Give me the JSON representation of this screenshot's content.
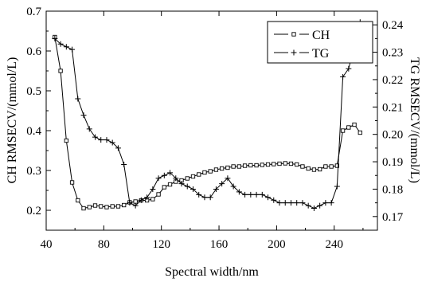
{
  "chart_data": {
    "type": "line",
    "xlabel": "Spectral width/nm",
    "ylabel_left": "CH RMSECV/(mmol/L)",
    "ylabel_right": "TG RMSECV/(mmol/L)",
    "xlim": [
      40,
      270
    ],
    "ylim_left": [
      0.15,
      0.7
    ],
    "ylim_right": [
      0.165,
      0.245
    ],
    "xticks": [
      "40",
      "80",
      "120",
      "160",
      "200",
      "240"
    ],
    "yticks_left": [
      "0.2",
      "0.3",
      "0.4",
      "0.5",
      "0.6",
      "0.7"
    ],
    "yticks_right": [
      "0.17",
      "0.18",
      "0.19",
      "0.20",
      "0.21",
      "0.22",
      "0.23",
      "0.24"
    ],
    "legend_position": "top-right",
    "grid": false,
    "series": [
      {
        "name": "CH",
        "axis": "left",
        "marker": "square",
        "x": [
          46,
          50,
          54,
          58,
          62,
          66,
          70,
          74,
          78,
          82,
          86,
          90,
          94,
          98,
          102,
          106,
          110,
          114,
          118,
          122,
          126,
          130,
          134,
          138,
          142,
          146,
          150,
          154,
          158,
          162,
          166,
          170,
          174,
          178,
          182,
          186,
          190,
          194,
          198,
          202,
          206,
          210,
          214,
          218,
          222,
          226,
          230,
          234,
          238,
          242,
          246,
          250,
          254,
          258
        ],
        "values": [
          0.635,
          0.55,
          0.375,
          0.27,
          0.225,
          0.205,
          0.208,
          0.212,
          0.21,
          0.208,
          0.21,
          0.21,
          0.213,
          0.22,
          0.222,
          0.225,
          0.225,
          0.228,
          0.24,
          0.258,
          0.265,
          0.272,
          0.275,
          0.28,
          0.285,
          0.29,
          0.295,
          0.298,
          0.302,
          0.305,
          0.307,
          0.31,
          0.31,
          0.312,
          0.313,
          0.313,
          0.314,
          0.315,
          0.316,
          0.317,
          0.318,
          0.317,
          0.315,
          0.31,
          0.305,
          0.302,
          0.303,
          0.31,
          0.31,
          0.312,
          0.4,
          0.408,
          0.415,
          0.395
        ]
      },
      {
        "name": "TG",
        "axis": "right",
        "marker": "plus",
        "x": [
          46,
          50,
          54,
          58,
          62,
          66,
          70,
          74,
          78,
          82,
          86,
          90,
          94,
          98,
          102,
          106,
          110,
          114,
          118,
          122,
          126,
          130,
          134,
          138,
          142,
          146,
          150,
          154,
          158,
          162,
          166,
          170,
          174,
          178,
          182,
          186,
          190,
          194,
          198,
          202,
          206,
          210,
          214,
          218,
          222,
          226,
          230,
          234,
          238,
          242,
          246,
          250,
          254,
          258
        ],
        "values": [
          0.235,
          0.233,
          0.232,
          0.231,
          0.213,
          0.207,
          0.202,
          0.199,
          0.198,
          0.198,
          0.197,
          0.195,
          0.189,
          0.175,
          0.174,
          0.176,
          0.177,
          0.18,
          0.184,
          0.185,
          0.186,
          0.184,
          0.182,
          0.181,
          0.18,
          0.178,
          0.177,
          0.177,
          0.18,
          0.182,
          0.184,
          0.181,
          0.179,
          0.178,
          0.178,
          0.178,
          0.178,
          0.177,
          0.176,
          0.175,
          0.175,
          0.175,
          0.175,
          0.175,
          0.174,
          0.173,
          0.174,
          0.175,
          0.175,
          0.181,
          0.221,
          0.224,
          0.232,
          0.241
        ]
      }
    ]
  }
}
